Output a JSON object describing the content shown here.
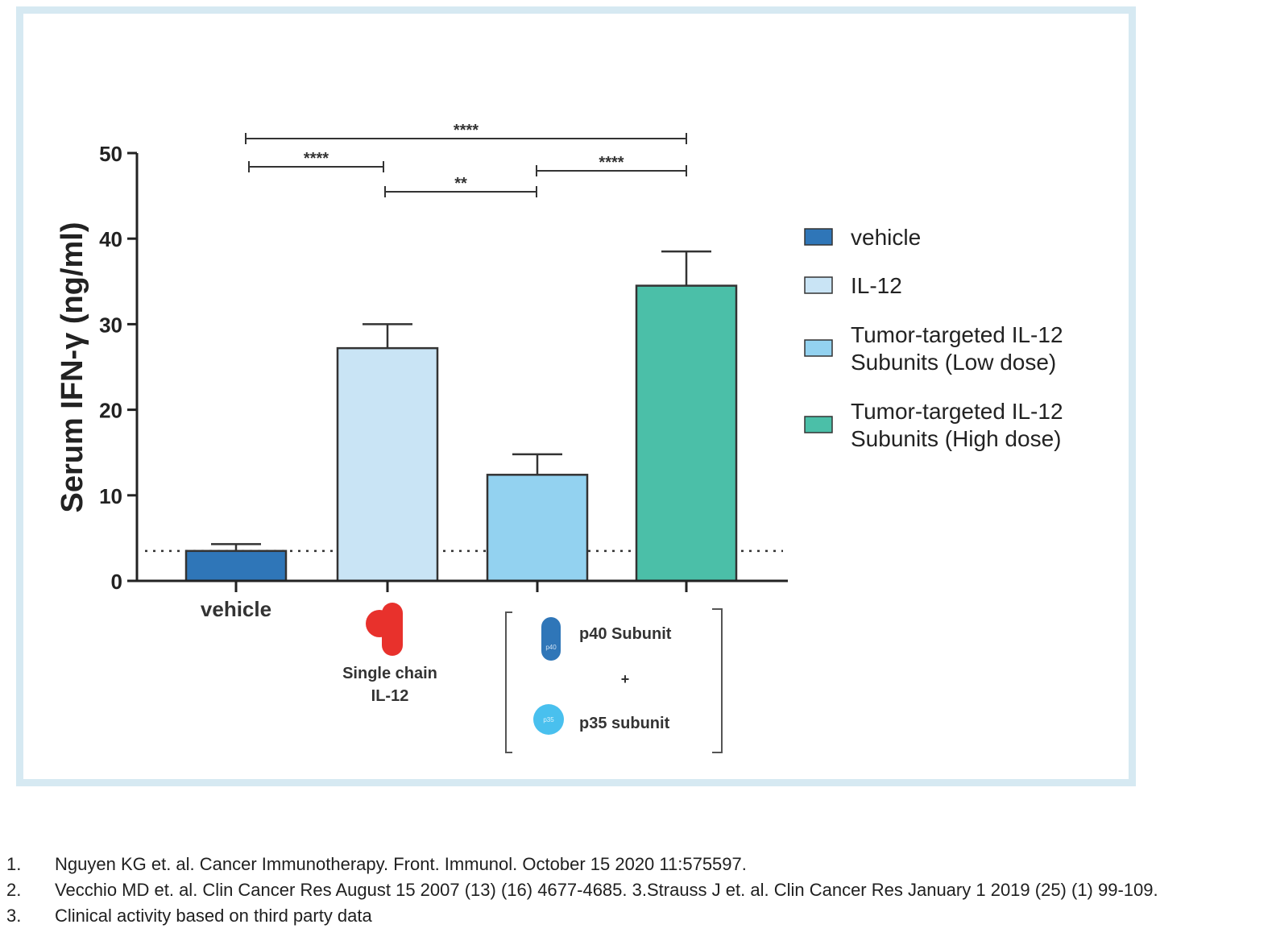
{
  "chart_data": {
    "type": "bar",
    "ylabel": "Serum IFN-γ (ng/ml)",
    "ylim": [
      0,
      50
    ],
    "yticks": [
      0,
      10,
      20,
      30,
      40,
      50
    ],
    "categories": [
      "vehicle",
      "",
      "",
      ""
    ],
    "series": [
      {
        "name": "vehicle",
        "value": 3.5,
        "error": 0.8,
        "color": "#2f76b8"
      },
      {
        "name": "IL-12",
        "value": 27.2,
        "error": 2.8,
        "color": "#c9e4f5"
      },
      {
        "name": "Tumor-targeted IL-12 Subunits (Low dose)",
        "value": 12.4,
        "error": 2.4,
        "color": "#93d2f0"
      },
      {
        "name": "Tumor-targeted IL-12 Subunits (High dose)",
        "value": 34.5,
        "error": 4.0,
        "color": "#4bbfa8"
      }
    ],
    "reference_line": {
      "value": 3.5,
      "style": "dotted"
    },
    "significance": [
      {
        "from": 0,
        "to": 3,
        "label": "****"
      },
      {
        "from": 0,
        "to": 1,
        "label": "****"
      },
      {
        "from": 1,
        "to": 2,
        "label": "**"
      },
      {
        "from": 2,
        "to": 3,
        "label": "****"
      }
    ],
    "legend_position": "right",
    "grid": false
  },
  "annotations": {
    "il12_label": [
      "Single chain",
      "IL-12"
    ],
    "p40_label": "p40 Subunit",
    "plus": "+",
    "p35_label": "p35 subunit",
    "p40_glyph": "p40",
    "p35_glyph": "p35"
  },
  "references": [
    {
      "num": "1.",
      "text": "Nguyen KG et. al. Cancer Immunotherapy. Front. Immunol. October 15 2020 11:575597."
    },
    {
      "num": "2.",
      "text": "Vecchio MD et. al. Clin Cancer Res August 15 2007 (13) (16) 4677-4685. 3.Strauss J et. al. Clin Cancer Res January 1 2019 (25) (1) 99-109."
    },
    {
      "num": "3.",
      "text": "Clinical activity based on third party data"
    }
  ]
}
